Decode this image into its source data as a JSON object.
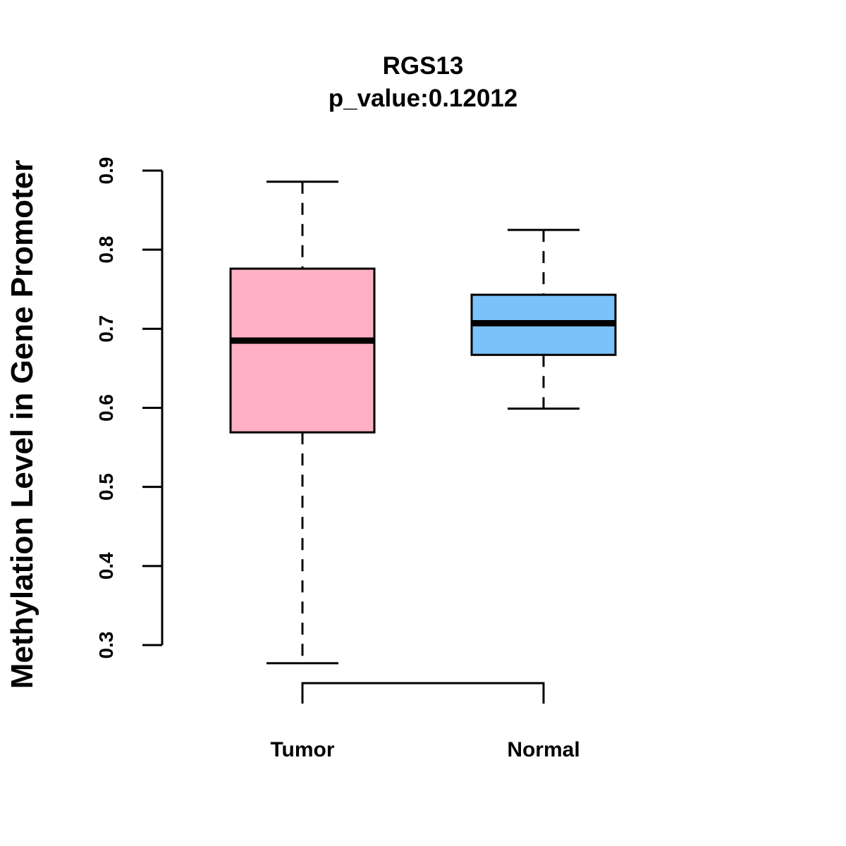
{
  "chart_data": {
    "type": "boxplot",
    "title": "RGS13",
    "subtitle": "p_value:0.12012",
    "xlabel": "",
    "ylabel": "Methylation Level in Gene Promoter",
    "ylim": [
      0.3,
      0.9
    ],
    "yticks": [
      "0.3",
      "0.4",
      "0.5",
      "0.6",
      "0.7",
      "0.8",
      "0.9"
    ],
    "grid": false,
    "legend": "none",
    "categories": [
      "Tumor",
      "Normal"
    ],
    "boxes": [
      {
        "name": "Tumor",
        "color": "#FFB1C3",
        "min": 0.277,
        "q1": 0.569,
        "median": 0.685,
        "q3": 0.776,
        "max": 0.886
      },
      {
        "name": "Normal",
        "color": "#7BC2FA",
        "min": 0.599,
        "q1": 0.667,
        "median": 0.707,
        "q3": 0.743,
        "max": 0.825
      }
    ],
    "bracket": {
      "from": "Tumor",
      "to": "Normal"
    }
  }
}
